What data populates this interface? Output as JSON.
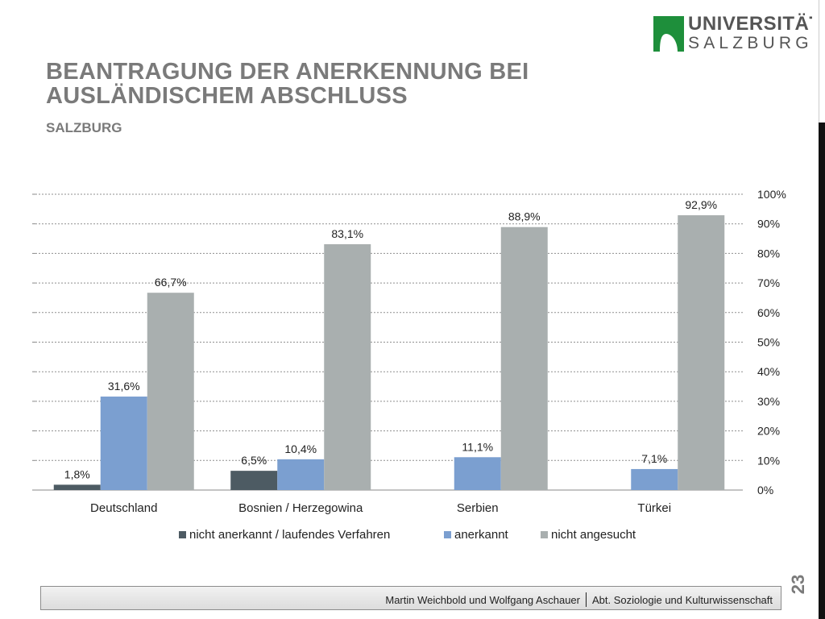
{
  "slide": {
    "title": "BEANTRAGUNG DER ANERKENNUNG BEI AUSLÄNDISCHEM ABSCHLUSS",
    "subtitle": "SALZBURG",
    "page_number": "23"
  },
  "logo": {
    "line1": "UNIVERSITÄT",
    "line2": "SALZBURG",
    "color": "#1e8f3b"
  },
  "footer": {
    "authors": "Martin Weichbold und Wolfgang Aschauer",
    "department": "Abt. Soziologie und Kulturwissenschaft"
  },
  "chart_data": {
    "type": "bar",
    "categories": [
      "Deutschland",
      "Bosnien / Herzegowina",
      "Serbien",
      "Türkei"
    ],
    "series": [
      {
        "name": "nicht anerkannt / laufendes Verfahren",
        "values": [
          1.8,
          6.5,
          null,
          null
        ],
        "labels": [
          "1,8%",
          "6,5%",
          "",
          ""
        ],
        "color": "#4d5b63"
      },
      {
        "name": "anerkannt",
        "values": [
          31.6,
          10.4,
          11.1,
          7.1
        ],
        "labels": [
          "31,6%",
          "10,4%",
          "11,1%",
          "7,1%"
        ],
        "color": "#7b9fd0"
      },
      {
        "name": "nicht angesucht",
        "values": [
          66.7,
          83.1,
          88.9,
          92.9
        ],
        "labels": [
          "66,7%",
          "83,1%",
          "88,9%",
          "92,9%"
        ],
        "color": "#a9afaf"
      }
    ],
    "ylim": [
      0,
      100
    ],
    "yticks": [
      "0%",
      "10%",
      "20%",
      "30%",
      "40%",
      "50%",
      "60%",
      "70%",
      "80%",
      "90%",
      "100%"
    ],
    "y_axis_side": "right",
    "grid": true,
    "legend_position": "bottom"
  }
}
